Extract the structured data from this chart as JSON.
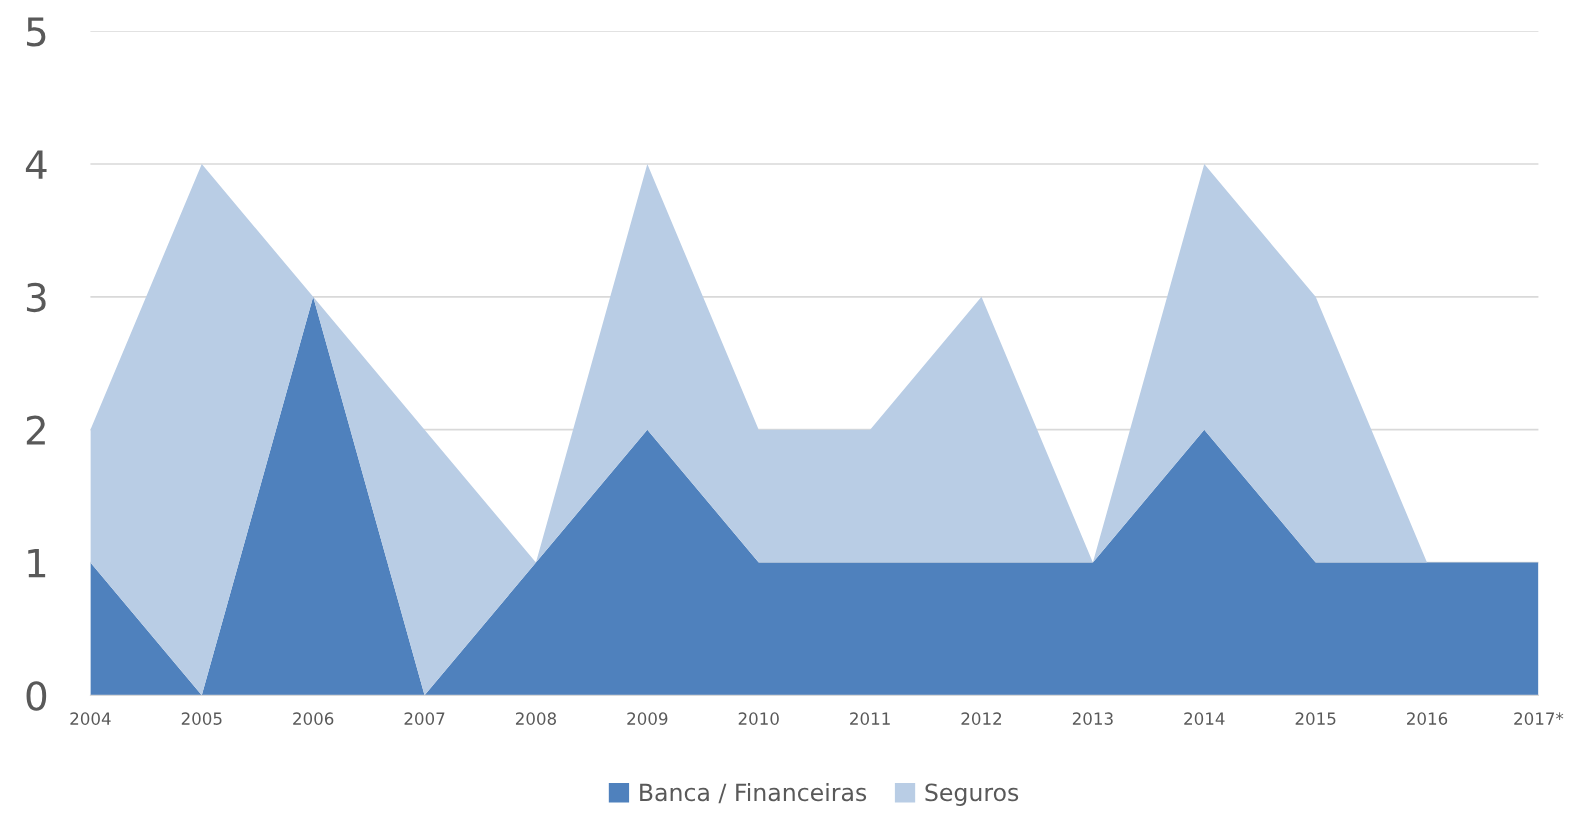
{
  "chart_data": {
    "type": "area",
    "stacked": true,
    "categories": [
      "2004",
      "2005",
      "2006",
      "2007",
      "2008",
      "2009",
      "2010",
      "2011",
      "2012",
      "2013",
      "2014",
      "2015",
      "2016",
      "2017*"
    ],
    "series": [
      {
        "name": "Banca / Financeiras",
        "color": "#4f81bd",
        "values": [
          1,
          0,
          3,
          0,
          1,
          2,
          1,
          1,
          1,
          1,
          2,
          1,
          1,
          1
        ]
      },
      {
        "name": "Seguros",
        "color": "#b9cde5",
        "values": [
          1,
          4,
          0,
          2,
          0,
          2,
          1,
          1,
          2,
          0,
          2,
          2,
          0,
          0
        ]
      }
    ],
    "ylim": [
      0,
      5
    ],
    "yticks": [
      0,
      1,
      2,
      3,
      4,
      5
    ],
    "grid": "y",
    "legend": "bottom"
  }
}
